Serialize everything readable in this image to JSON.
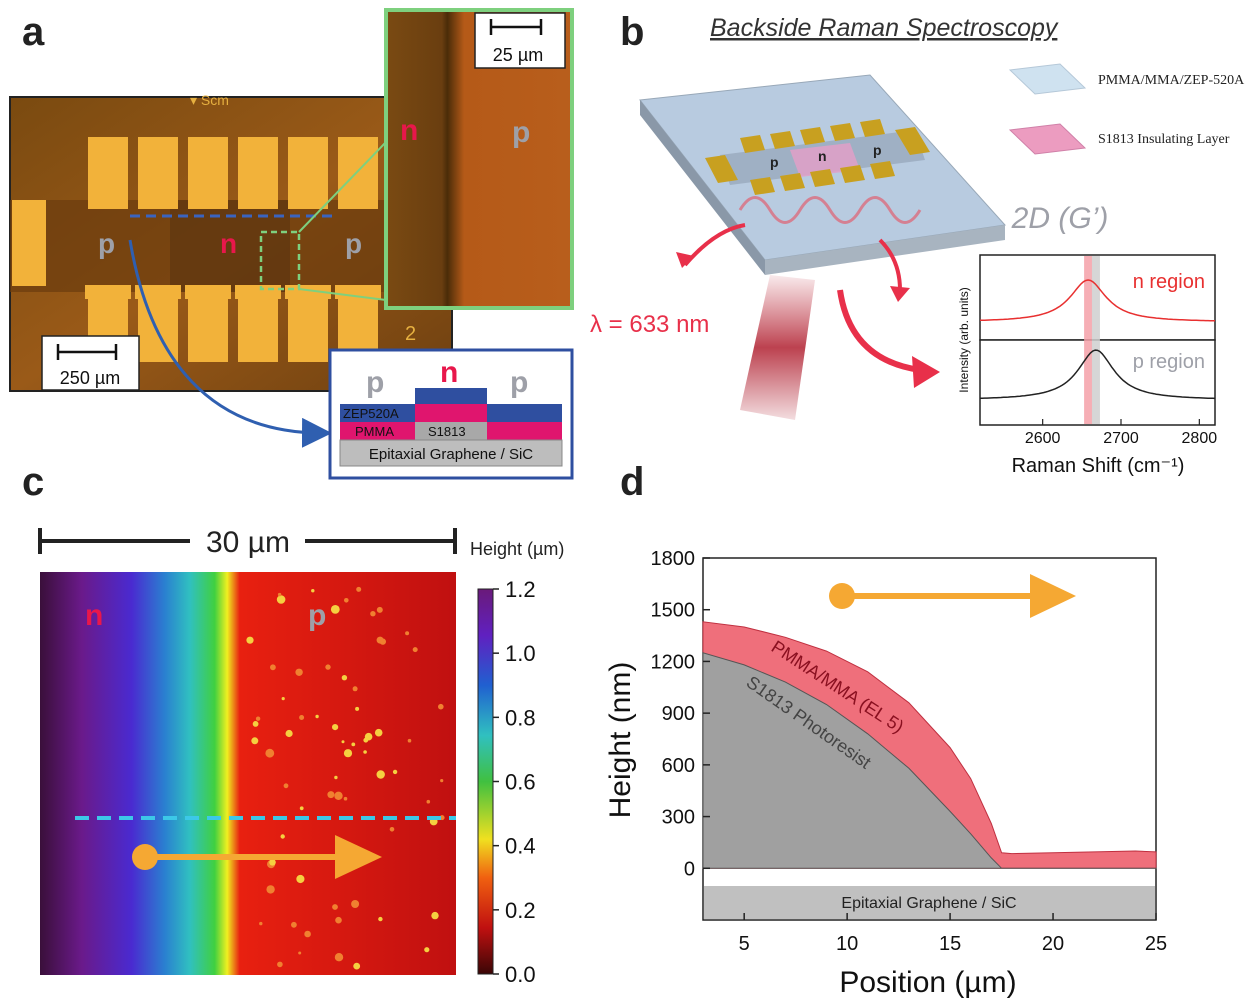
{
  "panels": {
    "a": {
      "label": "a",
      "inset_scale": "25 µm",
      "main_scale": "250 µm",
      "region_left": "p",
      "region_mid": "n",
      "region_right": "p",
      "inset_left": "n",
      "inset_right": "p",
      "schematic": {
        "p_left": "p",
        "n_mid": "n",
        "p_right": "p",
        "layer_zep": "ZEP520A",
        "layer_pmma": "PMMA",
        "layer_s1813": "S1813",
        "substrate": "Epitaxial Graphene / SiC"
      }
    },
    "b": {
      "label": "b",
      "title": "Backside Raman Spectroscopy",
      "legend_top": "PMMA/MMA/ZEP-520A",
      "legend_bottom": "S1813 Insulating Layer",
      "device_p_left": "p",
      "device_n": "n",
      "device_p_right": "p",
      "wavelength": "λ = 633 nm",
      "peak_label": "2D (G’)",
      "chart_data": {
        "type": "line",
        "xlabel": "Raman Shift (cm⁻¹)",
        "ylabel": "Intensity (arb. units)",
        "xlim": [
          2520,
          2820
        ],
        "xticks": [
          "2600",
          "2700",
          "2800"
        ],
        "series": [
          {
            "name": "n region",
            "color": "#e83030",
            "peak": 2658
          },
          {
            "name": "p region",
            "color": "#222222",
            "peak": 2668
          }
        ],
        "highlight_bands": [
          2658,
          2668
        ]
      }
    },
    "c": {
      "label": "c",
      "scale": "30 µm",
      "colorbar_title": "Height (µm)",
      "colorbar_ticks": [
        "1.2",
        "1.0",
        "0.8",
        "0.6",
        "0.4",
        "0.2",
        "0.0"
      ],
      "region_n": "n",
      "region_p": "p"
    },
    "d": {
      "label": "d",
      "chart_data": {
        "type": "area",
        "xlabel": "Position (µm)",
        "ylabel": "Height (nm)",
        "xlim": [
          3,
          25
        ],
        "ylim": [
          -300,
          1800
        ],
        "xticks": [
          "5",
          "10",
          "15",
          "20",
          "25"
        ],
        "yticks": [
          "0",
          "300",
          "600",
          "900",
          "1200",
          "1500",
          "1800"
        ],
        "series": [
          {
            "name": "PMMA/MMA (EL 5)",
            "color": "#ef6f7b",
            "x": [
              3,
              5,
              7,
              9,
              11,
              13,
              15,
              16,
              17,
              17.5,
              18,
              20,
              22,
              24,
              25
            ],
            "y": [
              1430,
              1400,
              1340,
              1260,
              1140,
              960,
              700,
              520,
              260,
              90,
              85,
              90,
              95,
              100,
              95
            ]
          },
          {
            "name": "S1813 Photoresist",
            "color": "#a0a0a0",
            "x": [
              3,
              5,
              7,
              9,
              11,
              13,
              15,
              16,
              17,
              17.5,
              18,
              25
            ],
            "y": [
              1250,
              1180,
              1080,
              950,
              780,
              580,
              330,
              200,
              60,
              0,
              0,
              0
            ]
          }
        ],
        "substrate_label": "Epitaxial Graphene / SiC"
      }
    }
  },
  "colors": {
    "n_red": "#e8174b",
    "p_grey": "#9ea0a8",
    "zep_blue": "#2f4fa0",
    "pmma_pink": "#e0156e",
    "s1813_grey": "#a8a8a8",
    "arrow_orange": "#f5a833",
    "inset_green": "#6cbf6c",
    "box_blue": "#2f4fa0"
  }
}
